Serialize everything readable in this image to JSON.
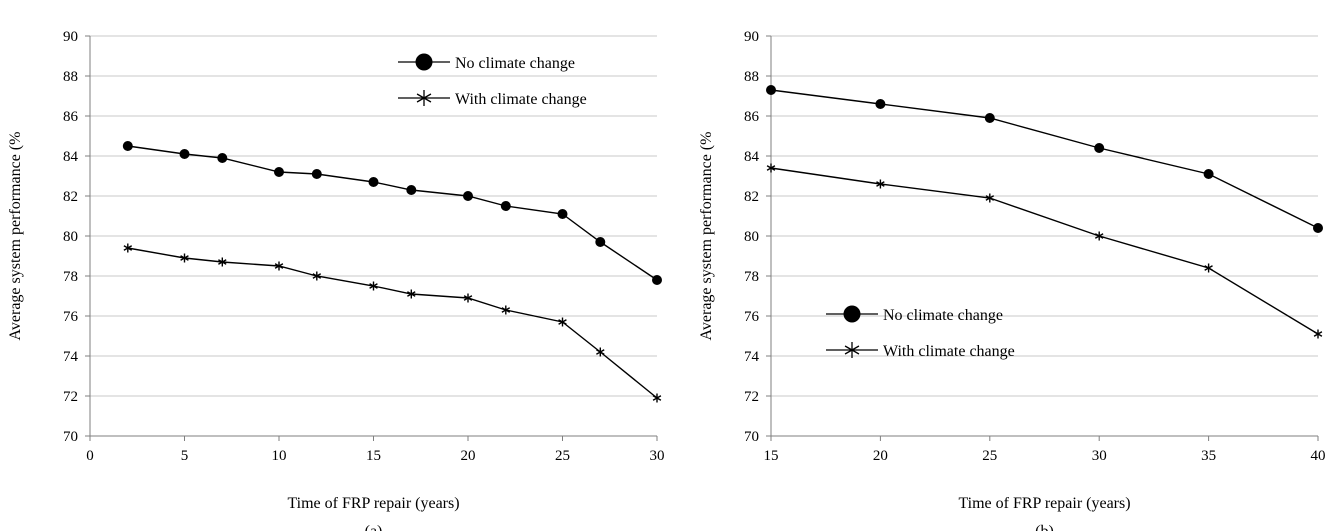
{
  "chart_data": [
    {
      "type": "line",
      "xlabel": "Time of FRP repair (years)",
      "ylabel": "Average system performance (%",
      "panel_label": "(a)",
      "xlim": [
        0,
        30
      ],
      "ylim": [
        70,
        90
      ],
      "xticks": [
        "0",
        "5",
        "10",
        "15",
        "20",
        "25",
        "30"
      ],
      "yticks": [
        "70",
        "72",
        "74",
        "76",
        "78",
        "80",
        "82",
        "84",
        "86",
        "88",
        "90"
      ],
      "grid": "horizontal",
      "legend_position": "top-right",
      "series": [
        {
          "name": "No climate change",
          "marker": "circle",
          "x": [
            2,
            5,
            7,
            10,
            12,
            15,
            17,
            20,
            22,
            25,
            27,
            30
          ],
          "y": [
            84.5,
            84.1,
            83.9,
            83.2,
            83.1,
            82.7,
            82.3,
            82.0,
            81.5,
            81.1,
            79.7,
            77.8
          ]
        },
        {
          "name": "With climate change",
          "marker": "asterisk",
          "x": [
            2,
            5,
            7,
            10,
            12,
            15,
            17,
            20,
            22,
            25,
            27,
            30
          ],
          "y": [
            79.4,
            78.9,
            78.7,
            78.5,
            78.0,
            77.5,
            77.1,
            76.9,
            76.3,
            75.7,
            74.2,
            71.9
          ]
        }
      ]
    },
    {
      "type": "line",
      "xlabel": "Time of FRP repair (years)",
      "ylabel": "Average system performance (%",
      "panel_label": "(b)",
      "xlim": [
        15,
        40
      ],
      "ylim": [
        70,
        90
      ],
      "xticks": [
        "15",
        "20",
        "25",
        "30",
        "35",
        "40"
      ],
      "yticks": [
        "70",
        "72",
        "74",
        "76",
        "78",
        "80",
        "82",
        "84",
        "86",
        "88",
        "90"
      ],
      "grid": "horizontal",
      "legend_position": "bottom-left",
      "series": [
        {
          "name": "No climate change",
          "marker": "circle",
          "x": [
            15,
            20,
            25,
            30,
            35,
            40
          ],
          "y": [
            87.3,
            86.6,
            85.9,
            84.4,
            83.1,
            80.4
          ]
        },
        {
          "name": "With climate change",
          "marker": "asterisk",
          "x": [
            15,
            20,
            25,
            30,
            35,
            40
          ],
          "y": [
            83.4,
            82.6,
            81.9,
            80.0,
            78.4,
            75.1
          ]
        }
      ]
    }
  ]
}
